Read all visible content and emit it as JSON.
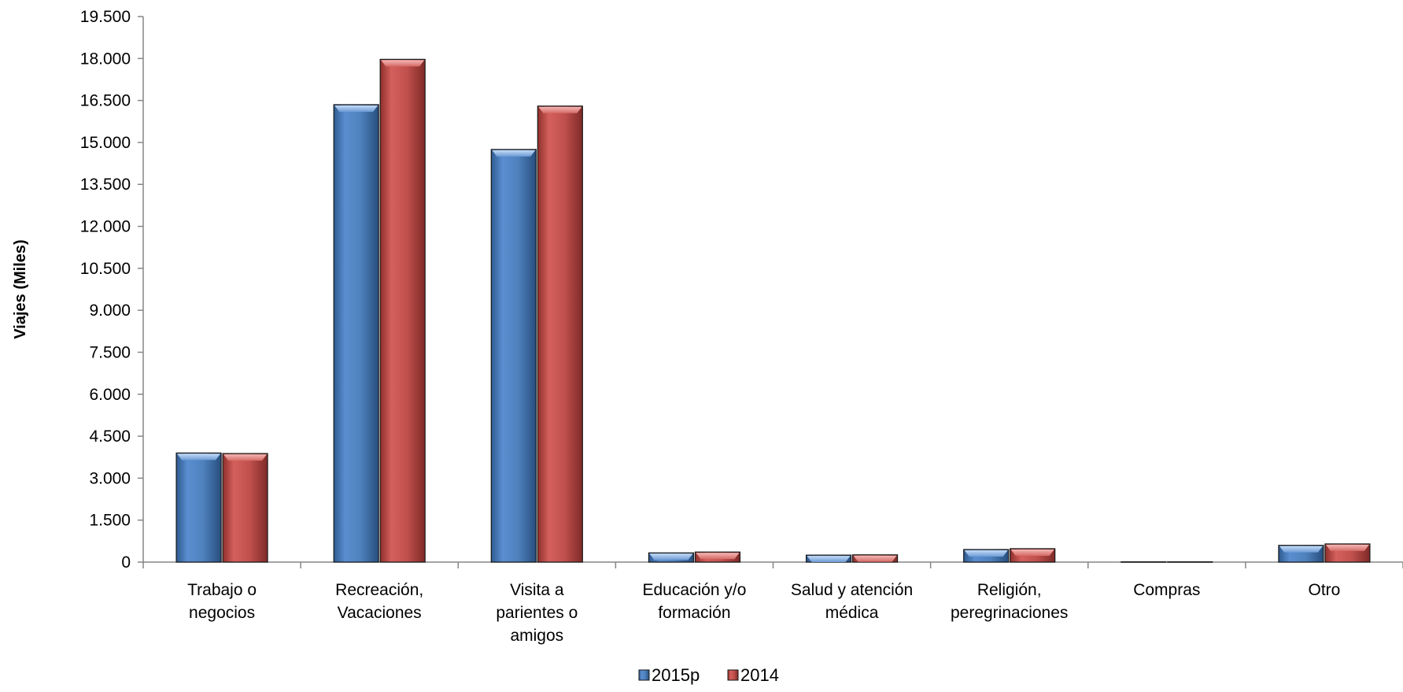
{
  "chart_data": {
    "type": "bar",
    "title": "",
    "xlabel": "",
    "ylabel": "Viajes (Miles)",
    "ylim": [
      0,
      19500
    ],
    "yticks": [
      0,
      1500,
      3000,
      4500,
      6000,
      7500,
      9000,
      10500,
      12000,
      13500,
      15000,
      16500,
      18000,
      19500
    ],
    "ytick_labels": [
      "0",
      "1.500",
      "3.000",
      "4.500",
      "6.000",
      "7.500",
      "9.000",
      "10.500",
      "12.000",
      "13.500",
      "15.000",
      "16.500",
      "18.000",
      "19.500"
    ],
    "categories": [
      [
        "Trabajo o",
        "negocios"
      ],
      [
        "Recreación,",
        "Vacaciones"
      ],
      [
        "Visita a",
        "parientes o",
        "amigos"
      ],
      [
        "Educación y/o",
        "formación"
      ],
      [
        "Salud y atención",
        "médica"
      ],
      [
        "Religión,",
        "peregrinaciones"
      ],
      [
        "Compras"
      ],
      [
        "Otro"
      ]
    ],
    "series": [
      {
        "name": "2015p",
        "color": "#4F81BD",
        "values": [
          3900,
          16350,
          14750,
          330,
          250,
          450,
          10,
          600
        ]
      },
      {
        "name": "2014",
        "color": "#C0504D",
        "values": [
          3880,
          17970,
          16300,
          360,
          260,
          480,
          10,
          650
        ]
      }
    ],
    "grid": false,
    "legend_position": "bottom"
  }
}
